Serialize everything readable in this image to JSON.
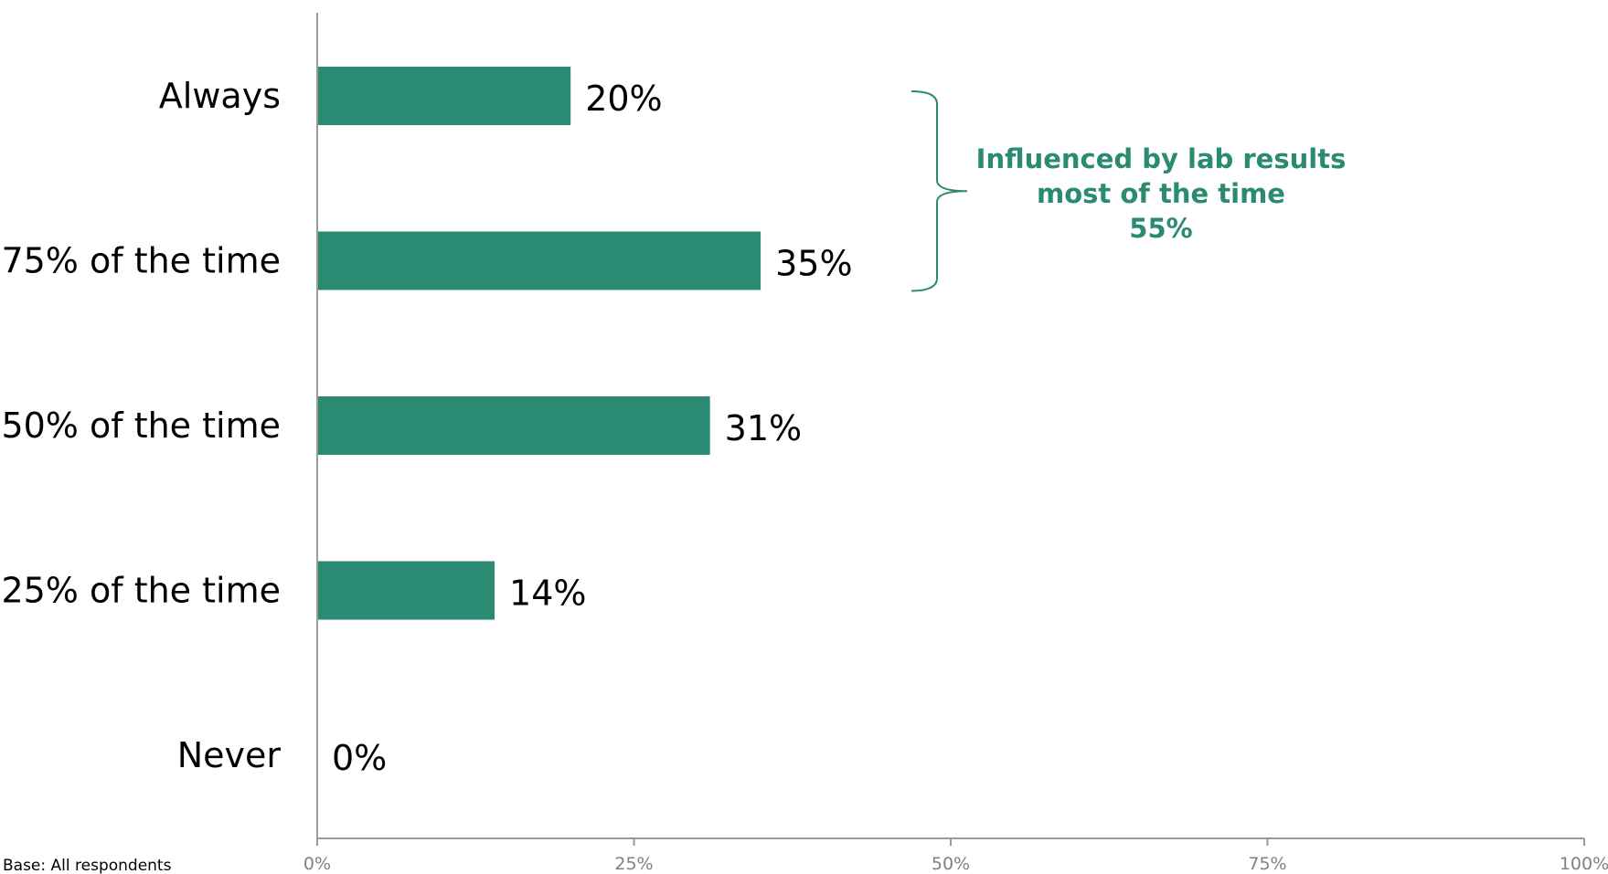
{
  "chart_data": {
    "type": "bar",
    "orientation": "horizontal",
    "categories": [
      "Always",
      "~75% of the time",
      "~50% of the time",
      "~25% of the time",
      "Never"
    ],
    "values": [
      20,
      35,
      31,
      14,
      0
    ],
    "value_labels": [
      "20%",
      "35%",
      "31%",
      "14%",
      "0%"
    ],
    "xlim": [
      0,
      100
    ],
    "x_ticks": [
      0,
      25,
      50,
      75,
      100
    ],
    "x_tick_labels": [
      "0%",
      "25%",
      "50%",
      "75%",
      "100%"
    ],
    "bar_color": "#2a8a72",
    "grid": false,
    "annotation": {
      "lines": [
        "Influenced by lab results",
        "most of the time",
        "55%"
      ],
      "brackets_categories": [
        "Always",
        "~75% of the time"
      ],
      "color": "#2a8a72"
    },
    "footnote": "Base: All respondents"
  }
}
